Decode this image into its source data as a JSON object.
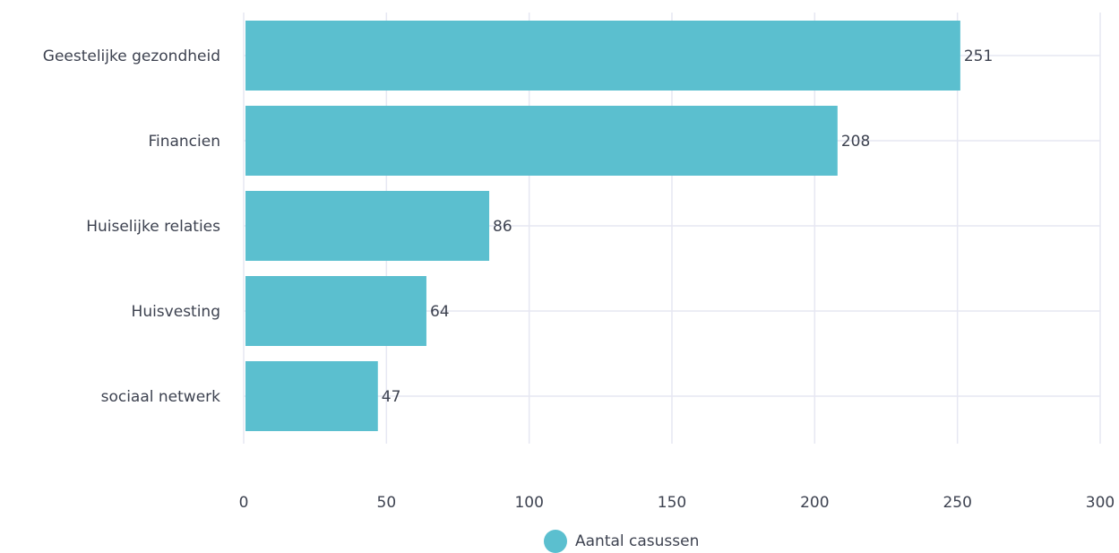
{
  "chart_data": {
    "type": "bar",
    "orientation": "horizontal",
    "categories": [
      "Geestelijke gezondheid",
      "Financien",
      "Huiselijke relaties",
      "Huisvesting",
      "sociaal netwerk"
    ],
    "series": [
      {
        "name": "Aantal casussen",
        "values": [
          251,
          208,
          86,
          64,
          47
        ],
        "color": "#5bbfcf"
      }
    ],
    "x_ticks": [
      "0",
      "50",
      "100",
      "150",
      "200",
      "250",
      "300"
    ],
    "xlim": [
      0,
      300
    ],
    "grid": true,
    "legend_position": "bottom",
    "title": "",
    "xlabel": "",
    "ylabel": ""
  },
  "legend": {
    "label": "Aantal casussen"
  },
  "colors": {
    "bar": "#5bbfcf",
    "grid": "#e6e7f2",
    "text": "#3d4250"
  }
}
